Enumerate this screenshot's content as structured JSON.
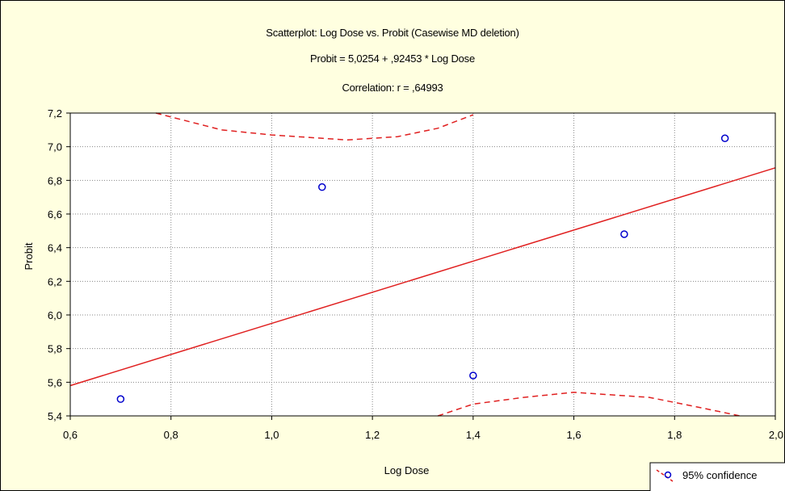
{
  "chart_data": {
    "type": "scatter",
    "title_lines": [
      "Scatterplot: Log Dose vs. Probit   (Casewise MD deletion)",
      "Probit  = 5,0254 + ,92453 * Log Dose",
      "Correlation: r = ,64993"
    ],
    "xlabel": "Log Dose",
    "ylabel": "Probit",
    "xlim": [
      0.6,
      2.0
    ],
    "ylim": [
      5.4,
      7.2
    ],
    "x_ticks": [
      "0,6",
      "0,8",
      "1,0",
      "1,2",
      "1,4",
      "1,6",
      "1,8",
      "2,0"
    ],
    "x_tick_values": [
      0.6,
      0.8,
      1.0,
      1.2,
      1.4,
      1.6,
      1.8,
      2.0
    ],
    "y_ticks": [
      "7,2",
      "7,0",
      "6,8",
      "6,6",
      "6,4",
      "6,2",
      "6,0",
      "5,8",
      "5,6",
      "5,4"
    ],
    "y_tick_values": [
      7.2,
      7.0,
      6.8,
      6.6,
      6.4,
      6.2,
      6.0,
      5.8,
      5.6,
      5.4
    ],
    "grid": true,
    "points": [
      {
        "x": 0.7,
        "y": 5.5
      },
      {
        "x": 1.1,
        "y": 6.76
      },
      {
        "x": 1.4,
        "y": 5.64
      },
      {
        "x": 1.7,
        "y": 6.48
      },
      {
        "x": 1.9,
        "y": 7.05
      }
    ],
    "regression": {
      "intercept": 5.0254,
      "slope": 0.92453
    },
    "confidence_upper": [
      [
        0.77,
        7.2
      ],
      [
        0.9,
        7.1
      ],
      [
        1.0,
        7.07
      ],
      [
        1.15,
        7.04
      ],
      [
        1.25,
        7.06
      ],
      [
        1.33,
        7.11
      ],
      [
        1.4,
        7.19
      ]
    ],
    "confidence_lower": [
      [
        1.33,
        5.4
      ],
      [
        1.4,
        5.47
      ],
      [
        1.5,
        5.51
      ],
      [
        1.6,
        5.54
      ],
      [
        1.75,
        5.51
      ],
      [
        1.85,
        5.45
      ],
      [
        1.93,
        5.4
      ]
    ],
    "legend": {
      "label": "95% confidence",
      "placement": "bottom-right"
    },
    "colors": {
      "points": "#0000cc",
      "regression": "#e02020",
      "confidence": "#e02020",
      "background": "#ffffe0",
      "plot_background": "#ffffff"
    }
  }
}
